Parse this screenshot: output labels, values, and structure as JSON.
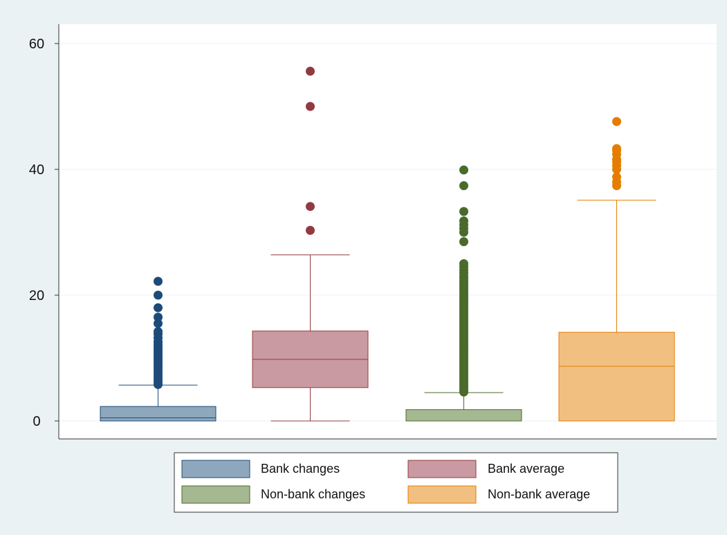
{
  "chart_data": {
    "type": "box",
    "ylim": [
      0,
      60
    ],
    "yticks": [
      0,
      20,
      40,
      60
    ],
    "grid": true,
    "legend_position": "bottom",
    "series": [
      {
        "name": "Bank changes",
        "color": "#8fa7bc",
        "stroke": "#1c4b7a",
        "q1": 0.0,
        "median": 0.5,
        "q3": 2.3,
        "whisker_low": 0.0,
        "whisker_high": 5.7,
        "outliers": [
          5.8,
          6.2,
          6.6,
          7.0,
          7.4,
          7.8,
          8.2,
          8.6,
          9.0,
          9.4,
          9.8,
          10.2,
          10.6,
          11.0,
          11.4,
          11.8,
          12.2,
          12.6,
          13.2,
          13.8,
          14.2,
          15.5,
          16.5,
          18.0,
          20.0,
          22.2
        ]
      },
      {
        "name": "Bank average",
        "color": "#c99aa1",
        "stroke": "#913a40",
        "q1": 5.3,
        "median": 9.8,
        "q3": 14.3,
        "whisker_low": 0.0,
        "whisker_high": 26.4,
        "outliers": [
          30.3,
          34.1,
          50.0,
          55.6
        ]
      },
      {
        "name": "Non-bank changes",
        "color": "#a5b892",
        "stroke": "#4a6a2b",
        "q1": 0.0,
        "median": 0.0,
        "q3": 1.8,
        "whisker_low": 0.0,
        "whisker_high": 4.5,
        "outliers": [
          4.6,
          5.0,
          5.4,
          5.8,
          6.2,
          6.6,
          7.0,
          7.4,
          7.8,
          8.2,
          8.6,
          9.0,
          9.4,
          9.8,
          10.2,
          10.6,
          11.0,
          11.4,
          11.8,
          12.2,
          12.6,
          13.0,
          13.4,
          13.8,
          14.2,
          14.6,
          15.0,
          15.4,
          15.8,
          16.2,
          16.6,
          17.0,
          17.4,
          17.8,
          18.2,
          18.6,
          19.0,
          19.4,
          19.8,
          20.2,
          20.6,
          21.0,
          21.4,
          21.8,
          22.2,
          22.6,
          23.0,
          23.5,
          24.0,
          24.5,
          25.0,
          28.5,
          30.0,
          30.6,
          31.2,
          31.8,
          33.3,
          37.4,
          39.9
        ]
      },
      {
        "name": "Non-bank average",
        "color": "#f1c081",
        "stroke": "#e57d00",
        "q1": 0.0,
        "median": 8.7,
        "q3": 14.1,
        "whisker_low": 0.0,
        "whisker_high": 35.1,
        "outliers": [
          37.4,
          38.0,
          38.8,
          40.0,
          40.6,
          41.2,
          41.6,
          42.4,
          43.0,
          43.3,
          47.6
        ]
      }
    ]
  }
}
